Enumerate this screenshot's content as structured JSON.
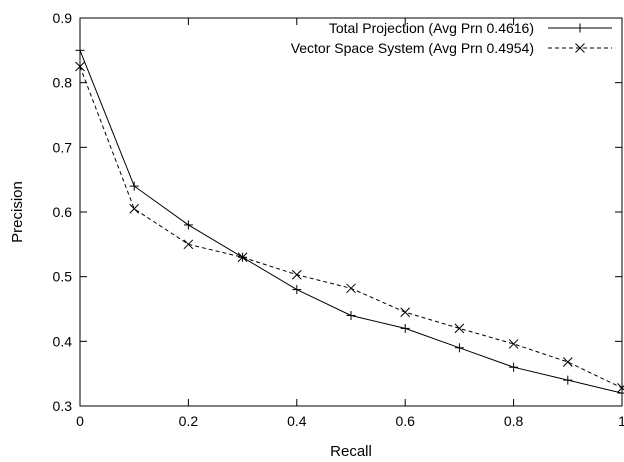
{
  "chart_data": {
    "type": "line",
    "xlabel": "Recall",
    "ylabel": "Precision",
    "xlim": [
      0,
      1
    ],
    "ylim": [
      0.3,
      0.9
    ],
    "x_ticks": [
      "0",
      "0.2",
      "0.4",
      "0.6",
      "0.8",
      "1"
    ],
    "y_ticks": [
      "0.3",
      "0.4",
      "0.5",
      "0.6",
      "0.7",
      "0.8",
      "0.9"
    ],
    "grid": false,
    "legend_position": "top-right",
    "x": [
      0,
      0.1,
      0.2,
      0.3,
      0.4,
      0.5,
      0.6,
      0.7,
      0.8,
      0.9,
      1.0
    ],
    "series": [
      {
        "name": "Total Projection (Avg Prn 0.4616)",
        "marker": "plus",
        "line_style": "solid",
        "color": "#000000",
        "values": [
          0.85,
          0.64,
          0.58,
          0.53,
          0.48,
          0.44,
          0.42,
          0.39,
          0.36,
          0.34,
          0.32
        ]
      },
      {
        "name": "Vector Space System (Avg Prn 0.4954)",
        "marker": "cross",
        "line_style": "dashed",
        "color": "#000000",
        "values": [
          0.825,
          0.605,
          0.55,
          0.53,
          0.503,
          0.482,
          0.445,
          0.42,
          0.396,
          0.368,
          0.328
        ]
      }
    ]
  }
}
